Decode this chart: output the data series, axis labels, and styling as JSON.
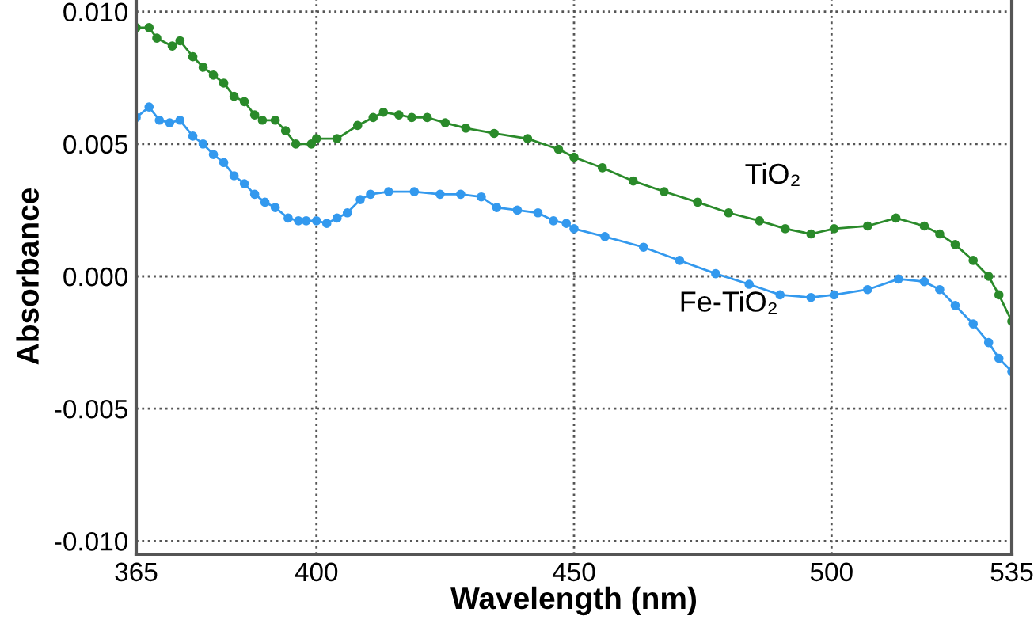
{
  "chart_data": {
    "type": "line",
    "xlabel": "Wavelength (nm)",
    "ylabel": "Absorbance",
    "xlim": [
      365,
      535
    ],
    "xticks": [
      365,
      400,
      450,
      500,
      535
    ],
    "ylim": [
      -0.0105,
      0.0105
    ],
    "yticks": [
      {
        "value": -0.01,
        "label": "-0.010"
      },
      {
        "value": -0.005,
        "label": "-0.005"
      },
      {
        "value": 0.0,
        "label": "0.000"
      },
      {
        "value": 0.005,
        "label": "0.005"
      },
      {
        "value": 0.01,
        "label": "0.010"
      }
    ],
    "grid": true,
    "marker": "circle",
    "line_style": "solid",
    "legend": false,
    "series": [
      {
        "name": "TiO₂",
        "color": "#2a8a2a",
        "x": [
          365,
          367.5,
          369,
          372,
          373.5,
          376,
          378,
          380,
          382,
          384,
          386,
          388,
          389.5,
          392,
          394,
          396,
          399,
          400,
          404,
          408,
          411,
          413,
          416,
          418.5,
          421.5,
          425,
          429,
          434.5,
          441,
          447,
          450,
          455.5,
          461.5,
          467.5,
          474,
          480,
          486,
          491,
          496,
          500.5,
          507,
          512.5,
          518,
          521,
          524,
          527.5,
          530.5,
          532.5,
          535
        ],
        "values": [
          0.0094,
          0.0094,
          0.009,
          0.0087,
          0.0089,
          0.0083,
          0.0079,
          0.0076,
          0.0073,
          0.0068,
          0.0066,
          0.0061,
          0.0059,
          0.0059,
          0.0055,
          0.005,
          0.005,
          0.0052,
          0.0052,
          0.0057,
          0.006,
          0.0062,
          0.0061,
          0.006,
          0.006,
          0.0058,
          0.0056,
          0.0054,
          0.0052,
          0.0048,
          0.0045,
          0.0041,
          0.0036,
          0.0032,
          0.0028,
          0.0024,
          0.0021,
          0.0018,
          0.0016,
          0.0018,
          0.0019,
          0.0022,
          0.0019,
          0.0016,
          0.0012,
          0.0006,
          0.0,
          -0.0007,
          -0.0017
        ]
      },
      {
        "name": "Fe-TiO₂",
        "color": "#3399ee",
        "x": [
          365,
          367.5,
          369.5,
          371.5,
          373.5,
          376,
          378,
          380,
          382,
          384,
          386,
          388,
          390,
          392,
          394.5,
          396.5,
          398,
          400,
          402,
          404,
          406,
          408.5,
          410.5,
          414,
          419,
          424,
          428,
          432,
          435,
          439,
          443,
          446,
          448.5,
          450,
          456,
          463.5,
          470.5,
          477.5,
          484,
          490,
          496,
          500.5,
          507,
          513,
          518,
          521,
          524,
          527.5,
          530.5,
          532.5,
          535
        ],
        "values": [
          0.006,
          0.0064,
          0.0059,
          0.0058,
          0.0059,
          0.0053,
          0.005,
          0.0046,
          0.0043,
          0.0038,
          0.0035,
          0.0031,
          0.0028,
          0.0026,
          0.0022,
          0.0021,
          0.0021,
          0.0021,
          0.002,
          0.0022,
          0.0024,
          0.0029,
          0.0031,
          0.0032,
          0.0032,
          0.0031,
          0.0031,
          0.003,
          0.0026,
          0.0025,
          0.0024,
          0.0021,
          0.002,
          0.0018,
          0.0015,
          0.0011,
          0.0006,
          0.0001,
          -0.0003,
          -0.0007,
          -0.0008,
          -0.0007,
          -0.0005,
          -0.0001,
          -0.0002,
          -0.0005,
          -0.0011,
          -0.0018,
          -0.0025,
          -0.0031,
          -0.0036
        ]
      }
    ]
  }
}
